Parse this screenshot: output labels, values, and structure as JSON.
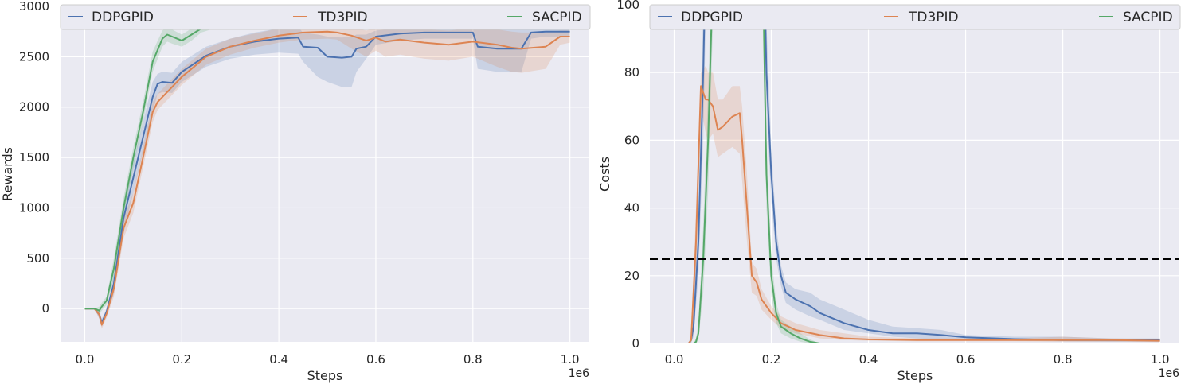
{
  "chart_data": [
    {
      "type": "line",
      "xlabel": "Steps",
      "ylabel": "Rewards",
      "x_offset_label": "1e6",
      "xlim": [
        -0.05,
        1.04
      ],
      "ylim": [
        -330,
        3000
      ],
      "x_ticks": [
        0.0,
        0.2,
        0.4,
        0.6,
        0.8,
        1.0
      ],
      "x_tick_labels": [
        "0.0",
        "0.2",
        "0.4",
        "0.6",
        "0.8",
        "1.0"
      ],
      "y_ticks": [
        0,
        500,
        1000,
        1500,
        2000,
        2500,
        3000
      ],
      "y_tick_labels": [
        "0",
        "500",
        "1000",
        "1500",
        "2000",
        "2500",
        "3000"
      ],
      "grid": true,
      "legend_position": "top",
      "series": [
        {
          "name": "DDPGPID",
          "color": "#4c72b0",
          "x": [
            0.0,
            0.02,
            0.03,
            0.035,
            0.045,
            0.06,
            0.08,
            0.1,
            0.12,
            0.14,
            0.15,
            0.16,
            0.18,
            0.2,
            0.25,
            0.3,
            0.35,
            0.4,
            0.44,
            0.45,
            0.48,
            0.5,
            0.53,
            0.55,
            0.56,
            0.58,
            0.6,
            0.65,
            0.7,
            0.75,
            0.8,
            0.81,
            0.85,
            0.9,
            0.92,
            0.95,
            1.0
          ],
          "values": [
            0,
            0,
            -60,
            -140,
            -30,
            250,
            900,
            1300,
            1700,
            2100,
            2230,
            2250,
            2240,
            2350,
            2510,
            2600,
            2650,
            2680,
            2690,
            2600,
            2590,
            2500,
            2490,
            2500,
            2580,
            2600,
            2700,
            2730,
            2740,
            2740,
            2740,
            2600,
            2580,
            2580,
            2740,
            2750,
            2750
          ],
          "lower": [
            0,
            0,
            -100,
            -180,
            -60,
            150,
            750,
            1150,
            1550,
            1950,
            2130,
            2150,
            2140,
            2250,
            2400,
            2480,
            2520,
            2540,
            2530,
            2450,
            2300,
            2250,
            2200,
            2200,
            2350,
            2480,
            2620,
            2660,
            2680,
            2680,
            2680,
            2380,
            2350,
            2350,
            2680,
            2700,
            2700
          ],
          "upper": [
            0,
            0,
            -20,
            -100,
            0,
            350,
            1050,
            1450,
            1850,
            2250,
            2330,
            2350,
            2340,
            2450,
            2600,
            2680,
            2740,
            2780,
            2790,
            2740,
            2720,
            2700,
            2690,
            2700,
            2720,
            2720,
            2760,
            2780,
            2790,
            2790,
            2790,
            2780,
            2790,
            2790,
            2790,
            2800,
            2800
          ]
        },
        {
          "name": "TD3PID",
          "color": "#dd8452",
          "x": [
            0.0,
            0.02,
            0.03,
            0.035,
            0.045,
            0.06,
            0.08,
            0.1,
            0.12,
            0.14,
            0.15,
            0.18,
            0.2,
            0.25,
            0.3,
            0.35,
            0.4,
            0.45,
            0.5,
            0.52,
            0.55,
            0.58,
            0.6,
            0.62,
            0.65,
            0.7,
            0.75,
            0.8,
            0.85,
            0.88,
            0.9,
            0.95,
            0.98,
            1.0
          ],
          "values": [
            0,
            0,
            -60,
            -160,
            -50,
            200,
            800,
            1050,
            1500,
            1950,
            2050,
            2200,
            2300,
            2500,
            2600,
            2660,
            2710,
            2740,
            2750,
            2740,
            2710,
            2660,
            2690,
            2650,
            2670,
            2640,
            2620,
            2650,
            2620,
            2590,
            2580,
            2600,
            2700,
            2700
          ],
          "lower": [
            0,
            0,
            -100,
            -200,
            -90,
            120,
            700,
            950,
            1400,
            1850,
            1970,
            2120,
            2220,
            2420,
            2520,
            2590,
            2640,
            2670,
            2680,
            2670,
            2580,
            2500,
            2560,
            2500,
            2520,
            2480,
            2460,
            2500,
            2400,
            2350,
            2340,
            2380,
            2620,
            2640
          ],
          "upper": [
            0,
            0,
            -20,
            -120,
            -10,
            280,
            900,
            1150,
            1600,
            2050,
            2130,
            2280,
            2380,
            2580,
            2680,
            2730,
            2780,
            2800,
            2810,
            2800,
            2790,
            2760,
            2780,
            2770,
            2780,
            2770,
            2760,
            2780,
            2770,
            2750,
            2740,
            2740,
            2760,
            2760
          ]
        },
        {
          "name": "SACPID",
          "color": "#55a868",
          "x": [
            0.0,
            0.02,
            0.03,
            0.035,
            0.045,
            0.06,
            0.08,
            0.1,
            0.12,
            0.14,
            0.16,
            0.17,
            0.18,
            0.2,
            0.22,
            0.24,
            0.26,
            0.3,
            0.4,
            0.5,
            0.55
          ],
          "values": [
            0,
            0,
            -20,
            20,
            80,
            400,
            1000,
            1500,
            1950,
            2450,
            2680,
            2720,
            2700,
            2660,
            2720,
            2780,
            2800,
            2820,
            2830,
            2830,
            2830
          ],
          "lower": [
            0,
            0,
            -60,
            -20,
            40,
            300,
            900,
            1400,
            1850,
            2350,
            2600,
            2650,
            2630,
            2600,
            2660,
            2740,
            2770,
            2790,
            2800,
            2800,
            2800
          ],
          "upper": [
            0,
            0,
            20,
            60,
            120,
            500,
            1100,
            1600,
            2050,
            2550,
            2760,
            2790,
            2770,
            2720,
            2780,
            2820,
            2830,
            2850,
            2860,
            2860,
            2860
          ]
        }
      ]
    },
    {
      "type": "line",
      "xlabel": "Steps",
      "ylabel": "Costs",
      "x_offset_label": "1e6",
      "xlim": [
        -0.05,
        1.04
      ],
      "ylim": [
        0,
        100
      ],
      "x_ticks": [
        0.0,
        0.2,
        0.4,
        0.6,
        0.8,
        1.0
      ],
      "x_tick_labels": [
        "0.0",
        "0.2",
        "0.4",
        "0.6",
        "0.8",
        "1.0"
      ],
      "y_ticks": [
        0,
        20,
        40,
        60,
        80,
        100
      ],
      "y_tick_labels": [
        "0",
        "20",
        "40",
        "60",
        "80",
        "100"
      ],
      "grid": true,
      "legend_position": "top",
      "threshold": 25,
      "series": [
        {
          "name": "DDPGPID",
          "color": "#4c72b0",
          "x": [
            0.03,
            0.035,
            0.04,
            0.05,
            0.06,
            0.07,
            0.18,
            0.19,
            0.2,
            0.21,
            0.22,
            0.23,
            0.25,
            0.28,
            0.3,
            0.35,
            0.4,
            0.45,
            0.5,
            0.55,
            0.6,
            0.7,
            0.8,
            0.9,
            1.0
          ],
          "values": [
            0,
            1,
            5,
            30,
            80,
            150,
            150,
            80,
            50,
            30,
            20,
            15,
            13,
            11,
            9,
            6,
            4,
            3,
            3,
            2.5,
            1.8,
            1.3,
            1,
            1,
            1
          ],
          "lower": [
            0,
            0,
            2,
            20,
            60,
            130,
            130,
            70,
            42,
            25,
            17,
            12,
            10,
            8,
            7,
            4,
            3,
            2,
            1.5,
            1.2,
            1,
            0.8,
            0.6,
            0.5,
            0.5
          ],
          "upper": [
            0,
            3,
            10,
            40,
            100,
            170,
            170,
            95,
            58,
            35,
            23,
            18,
            16,
            15,
            13,
            10,
            7,
            5,
            4.5,
            4,
            2.5,
            2,
            2,
            1.5,
            1.5
          ]
        },
        {
          "name": "TD3PID",
          "color": "#dd8452",
          "x": [
            0.03,
            0.035,
            0.045,
            0.055,
            0.065,
            0.07,
            0.08,
            0.09,
            0.1,
            0.12,
            0.135,
            0.14,
            0.15,
            0.16,
            0.17,
            0.18,
            0.2,
            0.22,
            0.25,
            0.3,
            0.35,
            0.4,
            0.5,
            0.6,
            0.7,
            0.8,
            0.9,
            1.0
          ],
          "values": [
            0,
            1,
            30,
            76,
            72,
            72,
            70,
            63,
            64,
            67,
            68,
            60,
            40,
            20,
            18,
            13,
            9,
            6,
            4,
            2.5,
            1.5,
            1.2,
            1,
            1,
            1,
            1,
            1,
            0.8
          ],
          "lower": [
            0,
            0,
            20,
            70,
            62,
            60,
            62,
            55,
            56,
            58,
            56,
            48,
            30,
            15,
            14,
            10,
            7,
            4.5,
            3,
            1.5,
            1,
            0.8,
            0.6,
            0.6,
            0.6,
            0.5,
            0.5,
            0.4
          ],
          "upper": [
            0,
            2,
            40,
            80,
            82,
            80,
            80,
            72,
            72,
            76,
            76,
            70,
            50,
            24,
            22,
            16,
            11,
            8,
            6,
            4,
            3,
            2,
            1.5,
            1.5,
            1.5,
            2,
            1.5,
            1.2
          ],
          "upper_cap": [
            0,
            2,
            40,
            80,
            82,
            80,
            80,
            72,
            72,
            76,
            76,
            70,
            50,
            24,
            22,
            16,
            11,
            8,
            6,
            4,
            3,
            2,
            1.5,
            1.5,
            1.5,
            2,
            1.5,
            1.2
          ]
        },
        {
          "name": "SACPID",
          "color": "#55a868",
          "x": [
            0.04,
            0.045,
            0.05,
            0.06,
            0.07,
            0.08,
            0.09,
            0.18,
            0.185,
            0.19,
            0.2,
            0.21,
            0.22,
            0.24,
            0.26,
            0.28,
            0.3
          ],
          "values": [
            0,
            0.5,
            3,
            25,
            60,
            110,
            150,
            150,
            90,
            50,
            20,
            9,
            5,
            3,
            1.5,
            0.5,
            0
          ],
          "lower": [
            0,
            0,
            1,
            15,
            45,
            95,
            130,
            130,
            75,
            40,
            14,
            6,
            3,
            1.5,
            0.5,
            0,
            0
          ],
          "upper": [
            0,
            1.5,
            6,
            35,
            75,
            125,
            170,
            170,
            105,
            60,
            26,
            12,
            7,
            5,
            3,
            1.2,
            0
          ]
        }
      ]
    }
  ]
}
